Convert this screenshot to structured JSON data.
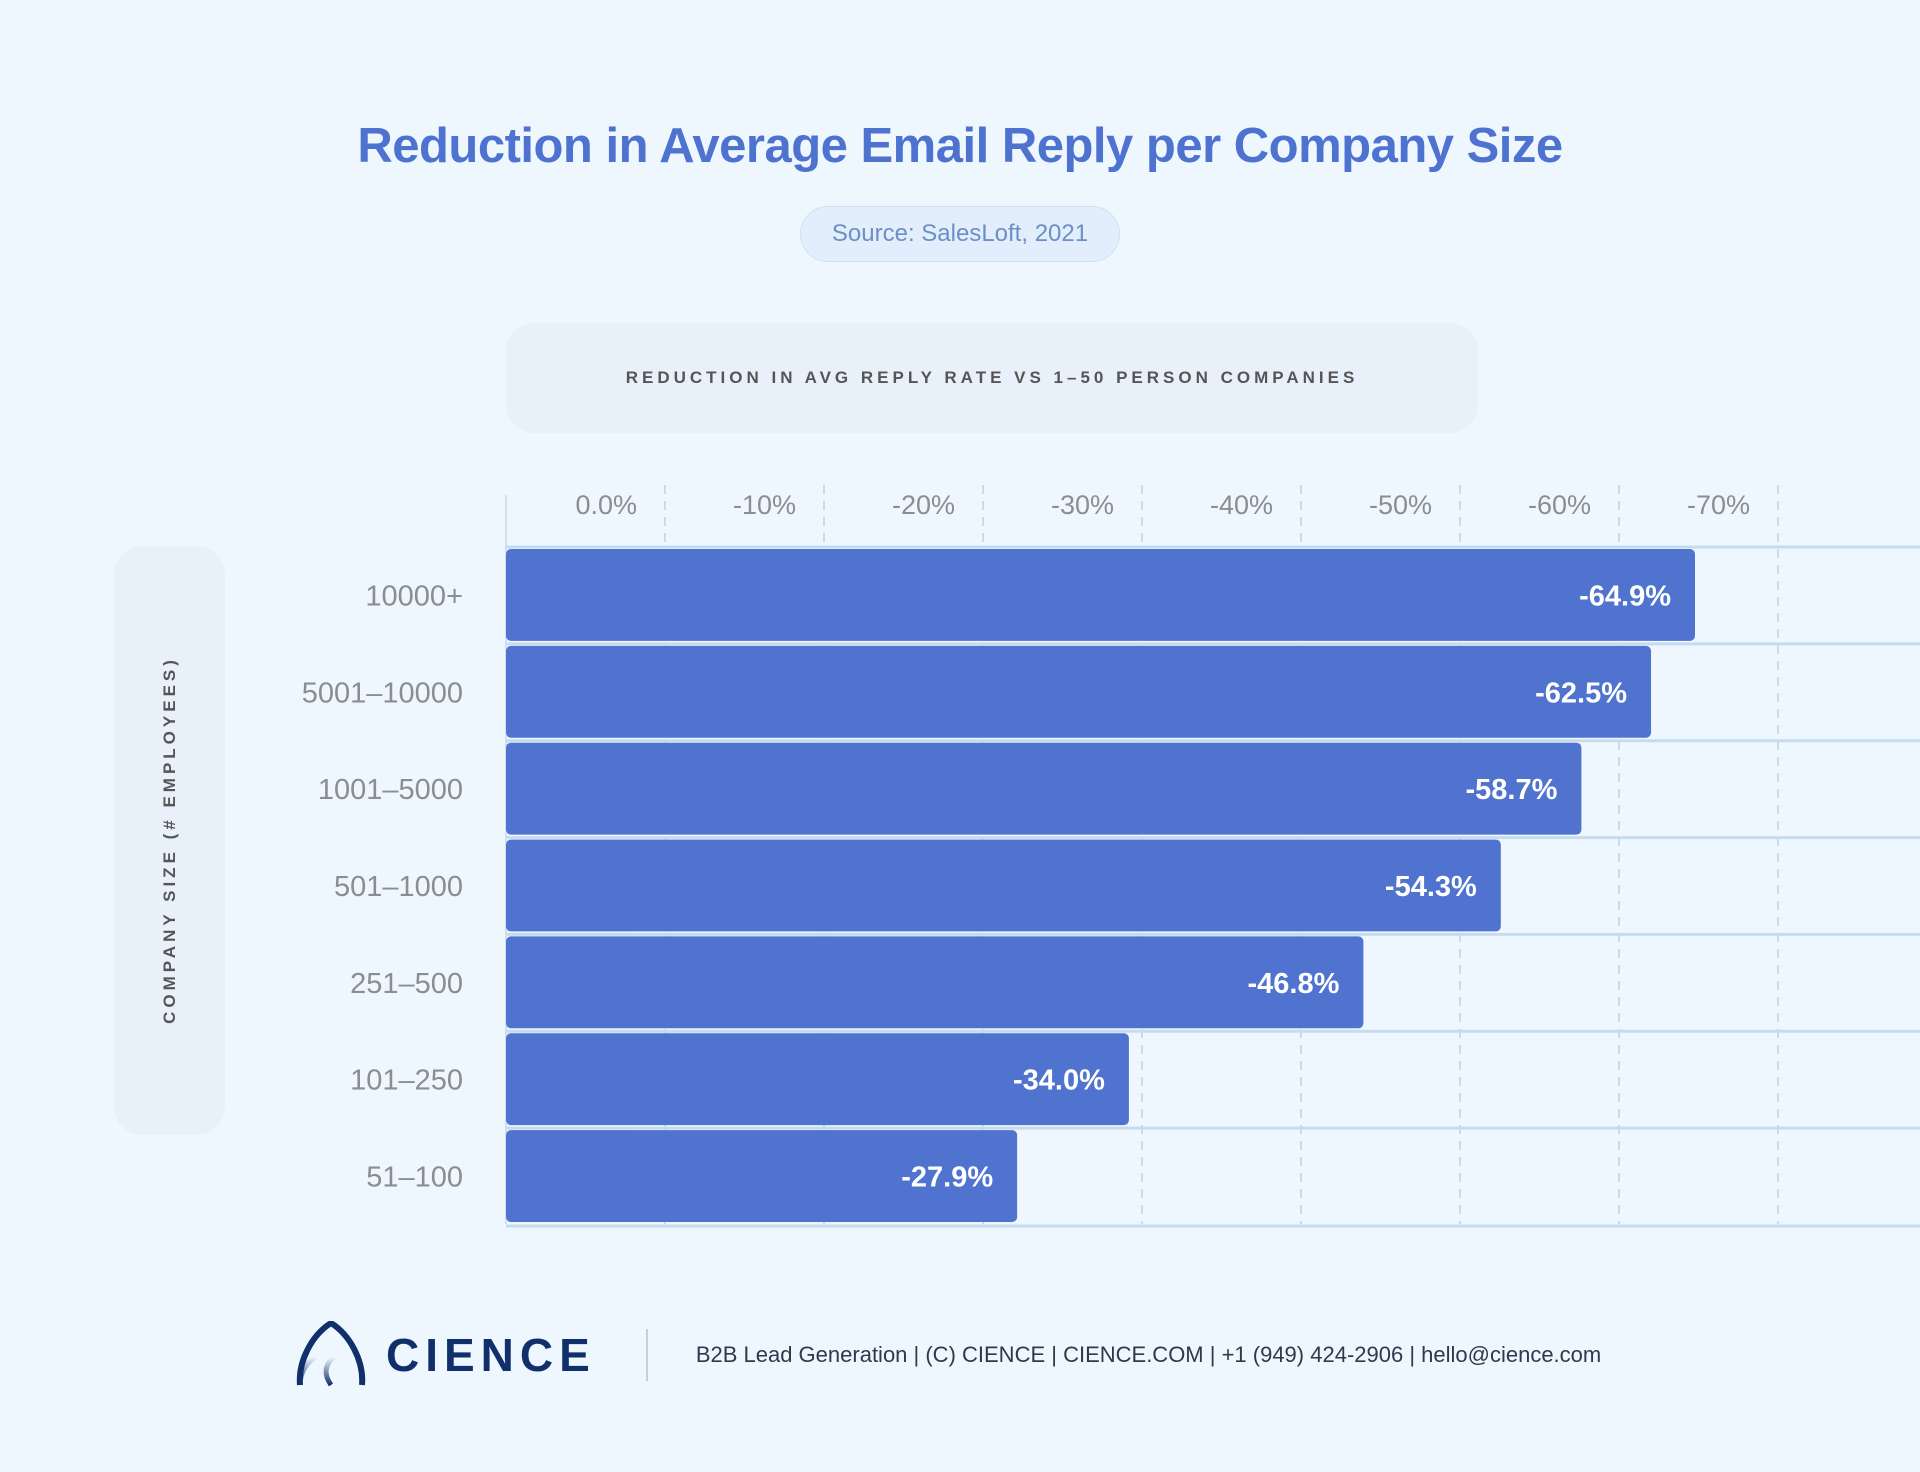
{
  "title": "Reduction in Average Email Reply per Company Size",
  "source": "Source: SalesLoft, 2021",
  "footer": {
    "brand": "CIENCE",
    "text": "B2B Lead Generation | (C) CIENCE | CIENCE.COM | +1 (949) 424-2906 | hello@cience.com"
  },
  "chart_data": {
    "type": "bar",
    "orientation": "horizontal",
    "title": "Reduction in Average Email Reply per Company Size",
    "xlabel": "REDUCTION IN AVG REPLY RATE VS 1–50 PERSON COMPANIES",
    "ylabel": "COMPANY SIZE (# EMPLOYEES)",
    "x_ticks": [
      "0.0%",
      "-10%",
      "-20%",
      "-30%",
      "-40%",
      "-50%",
      "-60%",
      "-70%"
    ],
    "xlim": [
      0,
      -80
    ],
    "grid": true,
    "bar_color": "#4f73cf",
    "categories": [
      "10000+",
      "5001–10000",
      "1001–5000",
      "501–1000",
      "251–500",
      "101–250",
      "51–100"
    ],
    "values": [
      -64.9,
      -62.5,
      -58.7,
      -54.3,
      -46.8,
      -34.0,
      -27.9
    ],
    "data_labels": [
      "-64.9%",
      "-62.5%",
      "-58.7%",
      "-54.3%",
      "-46.8%",
      "-34.0%",
      "-27.9%"
    ]
  }
}
